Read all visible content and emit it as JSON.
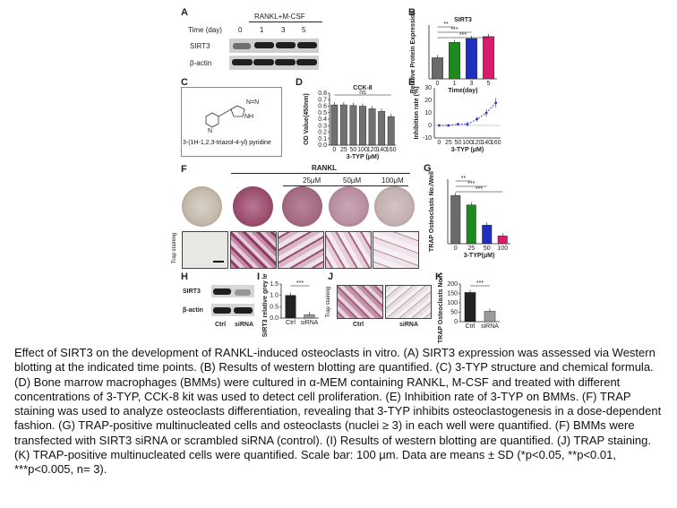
{
  "panels": {
    "A": {
      "label": "A",
      "header": "RANKL+M-CSF",
      "time_label": "Time (day)",
      "time_points": [
        "0",
        "1",
        "3",
        "5"
      ],
      "rows": [
        "SIRT3",
        "β-actin"
      ]
    },
    "B": {
      "label": "B"
    },
    "C": {
      "label": "C",
      "compound_name": "3-(1H-1,2,3-triazol-4-yl) pyridine"
    },
    "D": {
      "label": "D"
    },
    "E": {
      "label": "E"
    },
    "F": {
      "label": "F",
      "header": "RANKL",
      "doses": [
        "25μM",
        "50μM",
        "100μM"
      ],
      "row_label": "Trap staining"
    },
    "G": {
      "label": "G"
    },
    "H": {
      "label": "H",
      "rows": [
        "SIRT3",
        "β-actin"
      ],
      "lanes": [
        "Ctrl",
        "siRNA"
      ]
    },
    "I": {
      "label": "I"
    },
    "J": {
      "label": "J",
      "row_label": "Trap staining",
      "lanes": [
        "Ctrl",
        "siRNA"
      ]
    },
    "K": {
      "label": "K"
    }
  },
  "chart_data": [
    {
      "panel": "B",
      "type": "bar",
      "title": "SIRT3",
      "categories": [
        "0",
        "1",
        "3",
        "5"
      ],
      "values": [
        0.55,
        0.95,
        1.05,
        1.1
      ],
      "colors": [
        "#6b6b6b",
        "#1e8a1e",
        "#1f2fbf",
        "#d81b6a"
      ],
      "xlabel": "Time(day)",
      "ylabel": "Relative Protein Expression",
      "ylim": [
        0,
        1.4
      ],
      "annotations": [
        "**",
        "***",
        "***"
      ]
    },
    {
      "panel": "D",
      "type": "bar",
      "title": "CCK-8",
      "categories": [
        "0",
        "25",
        "50",
        "100",
        "120",
        "140",
        "160"
      ],
      "values": [
        0.62,
        0.62,
        0.61,
        0.6,
        0.56,
        0.52,
        0.44
      ],
      "xlabel": "3-TYP (μM)",
      "ylabel": "OD Value(450nm)",
      "yticks": [
        "0.0",
        "0.1",
        "0.2",
        "0.3",
        "0.4",
        "0.5",
        "0.6",
        "0.7",
        "0.8"
      ],
      "ylim": [
        0,
        0.8
      ],
      "annotations": [
        "ns"
      ]
    },
    {
      "panel": "E",
      "type": "line",
      "x": [
        "0",
        "25",
        "50",
        "100",
        "120",
        "140",
        "160"
      ],
      "values": [
        0,
        0,
        1,
        1,
        5,
        10,
        18
      ],
      "errors": [
        1,
        1,
        1,
        2,
        2,
        3,
        4
      ],
      "color": "#2536b8",
      "xlabel": "3-TYP (μM)",
      "ylabel": "Inhibition rate (%)",
      "yticks": [
        "-10",
        "0",
        "10",
        "20",
        "30"
      ],
      "ylim": [
        -10,
        30
      ]
    },
    {
      "panel": "G",
      "type": "bar",
      "categories": [
        "0",
        "25",
        "50",
        "100"
      ],
      "values": [
        187,
        150,
        72,
        30
      ],
      "colors": [
        "#6b6b6b",
        "#1e8a1e",
        "#1f2fbf",
        "#d81b6a"
      ],
      "xlabel": "3-TYP(μM)",
      "ylabel": "TRAP Osteoclasts No./Well",
      "ylim": [
        0,
        250
      ],
      "annotations": [
        "**",
        "***",
        "***"
      ]
    },
    {
      "panel": "I",
      "type": "bar",
      "categories": [
        "Ctrl",
        "siRNA"
      ],
      "values": [
        1.0,
        0.15
      ],
      "colors": [
        "#222222",
        "#9a9a9a"
      ],
      "ylabel": "SIRT3 relative grey level",
      "yticks": [
        "0.0",
        "0.5",
        "1.0",
        "1.5"
      ],
      "ylim": [
        0,
        1.5
      ],
      "annotations": [
        "***"
      ]
    },
    {
      "panel": "K",
      "type": "bar",
      "categories": [
        "Ctrl",
        "siRNA"
      ],
      "values": [
        155,
        55
      ],
      "colors": [
        "#222222",
        "#9a9a9a"
      ],
      "ylabel": "TRAP Osteoclasts No./Well",
      "yticks": [
        "0",
        "50",
        "100",
        "150",
        "200"
      ],
      "ylim": [
        0,
        200
      ],
      "annotations": [
        "***"
      ]
    }
  ],
  "caption": "Effect of SIRT3 on the development of RANKL-induced osteoclasts in vitro. (A) SIRT3 expression was assessed via Western blotting at the indicated time points. (B) Results of western blotting are quantified. (C) 3-TYP structure and chemical formula. (D) Bone marrow macrophages (BMMs) were cultured in α-MEM containing RANKL, M-CSF and treated with different concentrations of 3-TYP, CCK-8 kit was used to detect cell proliferation. (E) Inhibition rate of 3-TYP on BMMs. (F) TRAP staining was used to analyze osteoclasts differentiation, revealing that 3-TYP inhibits osteoclastogenesis in a dose-dependent fashion. (G) TRAP-positive multinucleated cells and osteoclasts (nuclei ≥ 3) in each well were quantified. (F) BMMs were transfected with SIRT3 siRNA or scrambled siRNA (control). (I) Results of western blotting are quantified. (J) TRAP staining. (K) TRAP-positive multinucleated cells were quantified. Scale bar: 100 μm. Data are means ± SD (*p<0.05, **p<0.01, ***p<0.005, n= 3)."
}
